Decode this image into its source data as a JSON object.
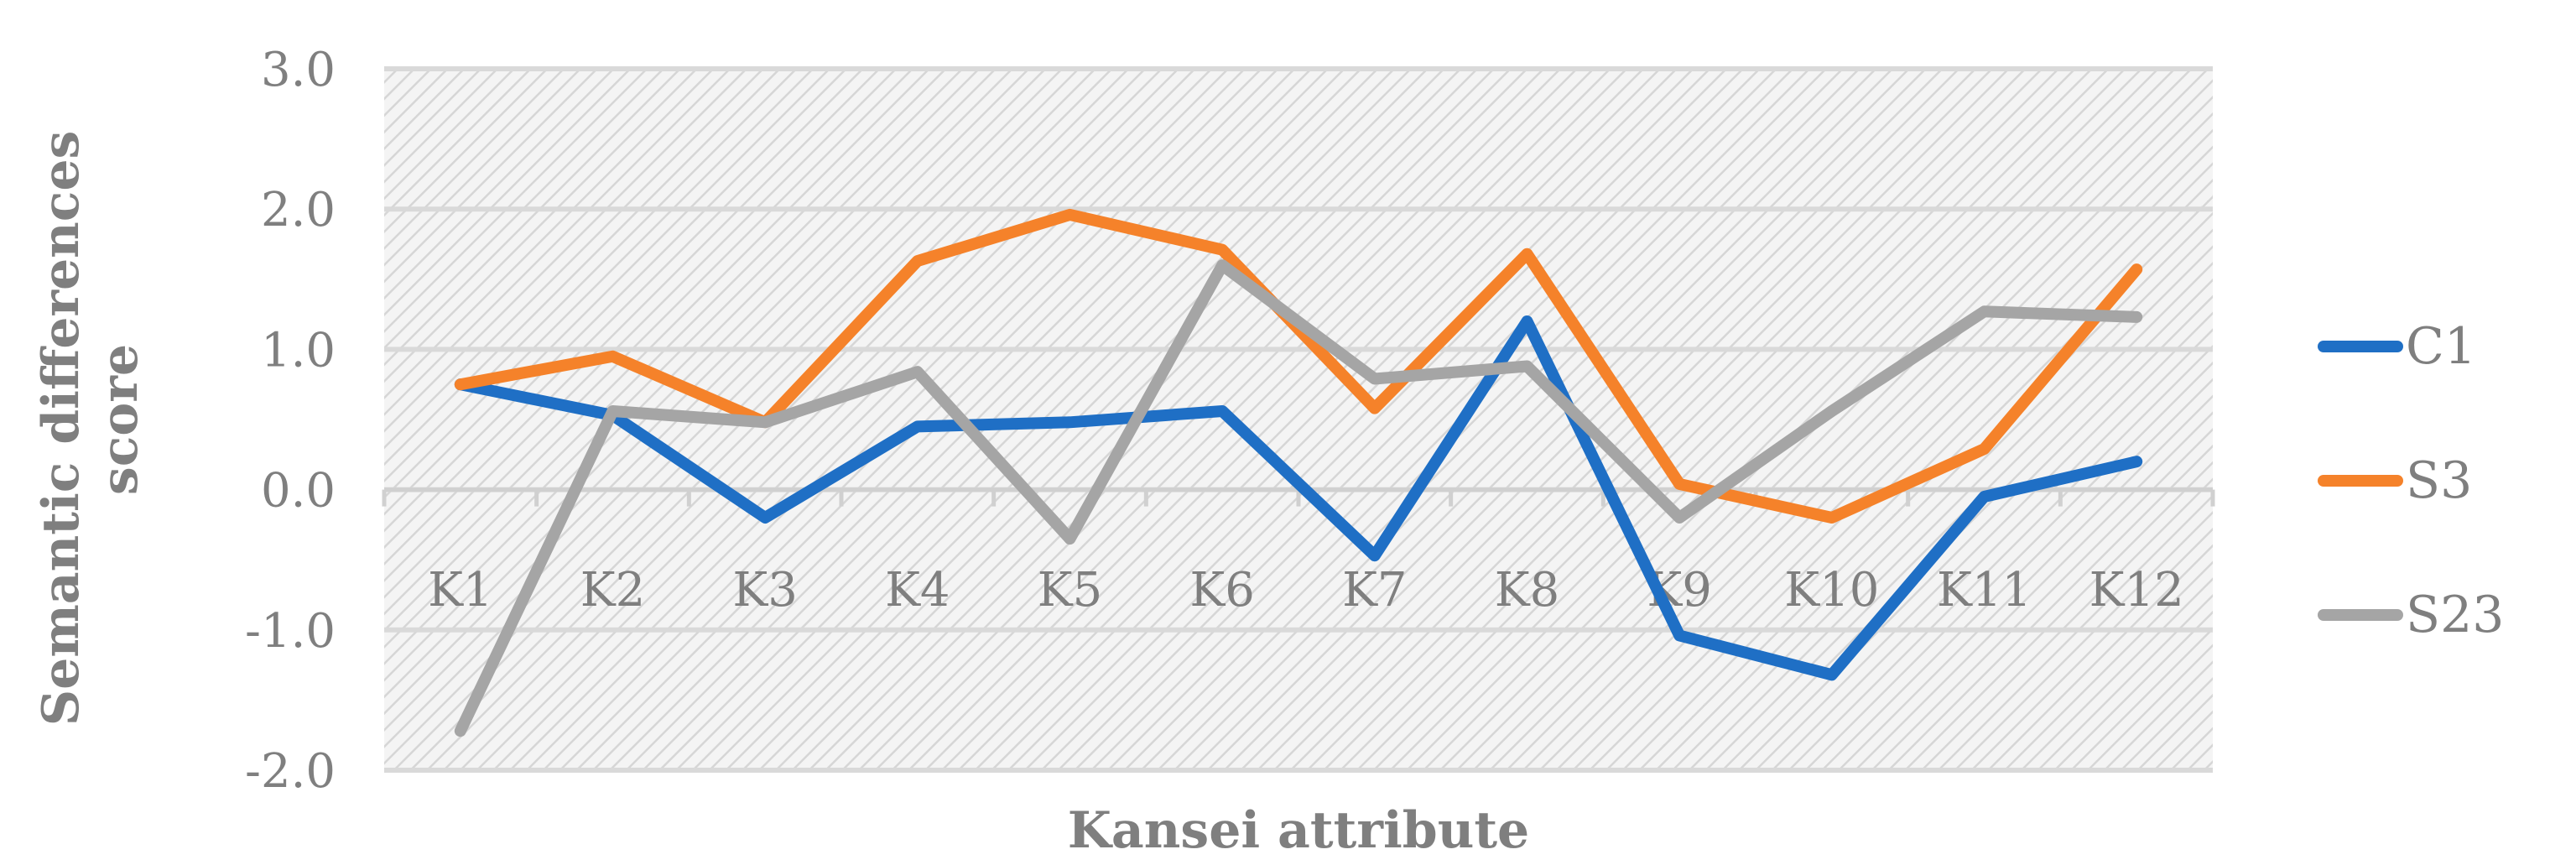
{
  "chart_data": {
    "type": "line",
    "title": "",
    "xlabel": "Kansei attribute",
    "ylabel": "Semantic differences score",
    "categories": [
      "K1",
      "K2",
      "K3",
      "K4",
      "K5",
      "K6",
      "K7",
      "K8",
      "K9",
      "K10",
      "K11",
      "K12"
    ],
    "ylim": [
      -2.0,
      3.0
    ],
    "yticks": [
      "3.0",
      "2.0",
      "1.0",
      "0.0",
      "-1.0",
      "-2.0"
    ],
    "grid": true,
    "legend_position": "right",
    "series": [
      {
        "name": "C1",
        "color": "#1f6fc5",
        "values": [
          0.75,
          0.53,
          -0.2,
          0.45,
          0.48,
          0.56,
          -0.47,
          1.2,
          -1.04,
          -1.32,
          -0.05,
          0.2
        ]
      },
      {
        "name": "S3",
        "color": "#f5822a",
        "values": [
          0.75,
          0.95,
          0.48,
          1.63,
          1.96,
          1.71,
          0.58,
          1.68,
          0.04,
          -0.2,
          0.29,
          1.57
        ]
      },
      {
        "name": "S23",
        "color": "#a5a5a5",
        "values": [
          -1.72,
          0.56,
          0.48,
          0.84,
          -0.35,
          1.6,
          0.79,
          0.88,
          -0.2,
          0.56,
          1.27,
          1.23
        ]
      }
    ]
  }
}
